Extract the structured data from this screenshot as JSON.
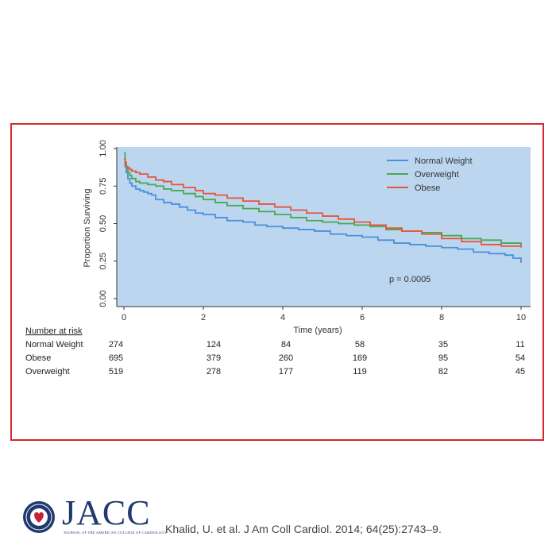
{
  "chart_data": {
    "type": "line",
    "title": "",
    "xlabel": "Time (years)",
    "ylabel": "Proportion Surviving",
    "xlim": [
      0,
      10
    ],
    "ylim": [
      0,
      1
    ],
    "xticks": [
      0,
      2,
      4,
      6,
      8,
      10
    ],
    "yticks": [
      0.0,
      0.25,
      0.5,
      0.75,
      1.0
    ],
    "ytick_labels": [
      "0.00",
      "0.25",
      "0.50",
      "0.75",
      "1.00"
    ],
    "background_color": "#bcd6ef",
    "legend_position": "top-right",
    "annotation": "p = 0.0005",
    "series": [
      {
        "name": "Normal Weight",
        "color": "#4a90d9",
        "x": [
          0,
          0.03,
          0.06,
          0.1,
          0.15,
          0.2,
          0.3,
          0.4,
          0.5,
          0.6,
          0.7,
          0.8,
          1.0,
          1.2,
          1.4,
          1.6,
          1.8,
          2.0,
          2.3,
          2.6,
          3.0,
          3.3,
          3.6,
          4.0,
          4.4,
          4.8,
          5.2,
          5.6,
          6.0,
          6.4,
          6.8,
          7.2,
          7.6,
          8.0,
          8.4,
          8.8,
          9.2,
          9.6,
          9.8,
          10.0
        ],
        "values": [
          0.93,
          0.88,
          0.84,
          0.8,
          0.77,
          0.75,
          0.73,
          0.72,
          0.71,
          0.7,
          0.69,
          0.66,
          0.64,
          0.63,
          0.61,
          0.59,
          0.57,
          0.56,
          0.54,
          0.52,
          0.51,
          0.49,
          0.48,
          0.47,
          0.46,
          0.45,
          0.43,
          0.42,
          0.41,
          0.39,
          0.37,
          0.36,
          0.35,
          0.34,
          0.33,
          0.31,
          0.3,
          0.29,
          0.27,
          0.24
        ]
      },
      {
        "name": "Overweight",
        "color": "#4aa84f",
        "x": [
          0,
          0.03,
          0.06,
          0.1,
          0.15,
          0.2,
          0.3,
          0.4,
          0.6,
          0.8,
          1.0,
          1.2,
          1.5,
          1.8,
          2.0,
          2.3,
          2.6,
          3.0,
          3.4,
          3.8,
          4.2,
          4.6,
          5.0,
          5.4,
          5.8,
          6.2,
          6.6,
          7.0,
          7.5,
          8.0,
          8.5,
          9.0,
          9.5,
          10.0
        ],
        "values": [
          0.97,
          0.91,
          0.87,
          0.84,
          0.82,
          0.8,
          0.78,
          0.77,
          0.76,
          0.75,
          0.73,
          0.72,
          0.7,
          0.68,
          0.66,
          0.64,
          0.62,
          0.6,
          0.58,
          0.56,
          0.54,
          0.52,
          0.51,
          0.5,
          0.49,
          0.48,
          0.46,
          0.45,
          0.44,
          0.42,
          0.4,
          0.39,
          0.37,
          0.35
        ]
      },
      {
        "name": "Obese",
        "color": "#e8543c",
        "x": [
          0,
          0.03,
          0.06,
          0.1,
          0.15,
          0.2,
          0.3,
          0.4,
          0.6,
          0.8,
          1.0,
          1.2,
          1.5,
          1.8,
          2.0,
          2.3,
          2.6,
          3.0,
          3.4,
          3.8,
          4.2,
          4.6,
          5.0,
          5.4,
          5.8,
          6.2,
          6.6,
          7.0,
          7.5,
          8.0,
          8.5,
          9.0,
          9.5,
          10.0
        ],
        "values": [
          0.93,
          0.9,
          0.88,
          0.87,
          0.86,
          0.85,
          0.84,
          0.83,
          0.81,
          0.79,
          0.78,
          0.76,
          0.74,
          0.72,
          0.7,
          0.69,
          0.67,
          0.65,
          0.63,
          0.61,
          0.59,
          0.57,
          0.55,
          0.53,
          0.51,
          0.49,
          0.47,
          0.45,
          0.43,
          0.4,
          0.38,
          0.36,
          0.35,
          0.34
        ]
      }
    ],
    "risk_table": {
      "title": "Number at risk",
      "timepoints": [
        0,
        2,
        4,
        6,
        8,
        10
      ],
      "rows": [
        {
          "label": "Normal Weight",
          "values": [
            "274",
            "124",
            "84",
            "58",
            "35",
            "11"
          ]
        },
        {
          "label": "Obese",
          "values": [
            "695",
            "379",
            "260",
            "169",
            "95",
            "54"
          ]
        },
        {
          "label": "Overweight",
          "values": [
            "519",
            "278",
            "177",
            "119",
            "82",
            "45"
          ]
        }
      ]
    }
  },
  "footer": {
    "brand": "JACC",
    "brand_subtitle": "JOURNAL OF THE AMERICAN COLLEGE OF CARDIOLOGY",
    "citation": "Khalid, U. et al. J Am Coll Cardiol. 2014; 64(25):2743–9."
  },
  "colors": {
    "frame_border": "#d7282f",
    "brand": "#1e3a6e"
  }
}
